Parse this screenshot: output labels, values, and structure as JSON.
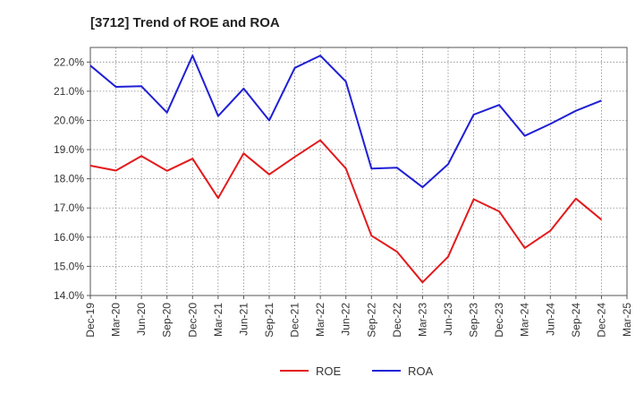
{
  "chart_data": {
    "type": "line",
    "title": "[3712]  Trend of ROE and ROA",
    "xlabel": "",
    "ylabel": "",
    "categories": [
      "Dec-19",
      "Mar-20",
      "Jun-20",
      "Sep-20",
      "Dec-20",
      "Mar-21",
      "Jun-21",
      "Sep-21",
      "Dec-21",
      "Mar-22",
      "Jun-22",
      "Sep-22",
      "Dec-22",
      "Mar-23",
      "Jun-23",
      "Sep-23",
      "Dec-23",
      "Mar-24",
      "Jun-24",
      "Sep-24",
      "Dec-24",
      "Mar-25"
    ],
    "y_ticks": [
      "14.0%",
      "15.0%",
      "16.0%",
      "17.0%",
      "18.0%",
      "19.0%",
      "20.0%",
      "21.0%",
      "22.0%"
    ],
    "ylim": [
      14.0,
      22.5
    ],
    "grid": true,
    "legend_position": "bottom",
    "series": [
      {
        "name": "ROE",
        "color": "#e31a1c",
        "values": [
          18.45,
          18.28,
          18.78,
          18.27,
          18.69,
          17.34,
          18.87,
          18.15,
          18.75,
          19.32,
          18.35,
          16.05,
          15.5,
          14.45,
          15.33,
          17.3,
          16.88,
          15.63,
          16.22,
          17.32,
          16.6,
          null
        ]
      },
      {
        "name": "ROA",
        "color": "#1f1fd6",
        "values": [
          21.88,
          21.15,
          21.17,
          20.27,
          22.22,
          20.15,
          21.09,
          20.0,
          21.8,
          22.22,
          21.33,
          18.35,
          18.38,
          17.71,
          18.5,
          20.2,
          20.53,
          19.47,
          19.88,
          20.33,
          20.68,
          null
        ]
      }
    ]
  }
}
